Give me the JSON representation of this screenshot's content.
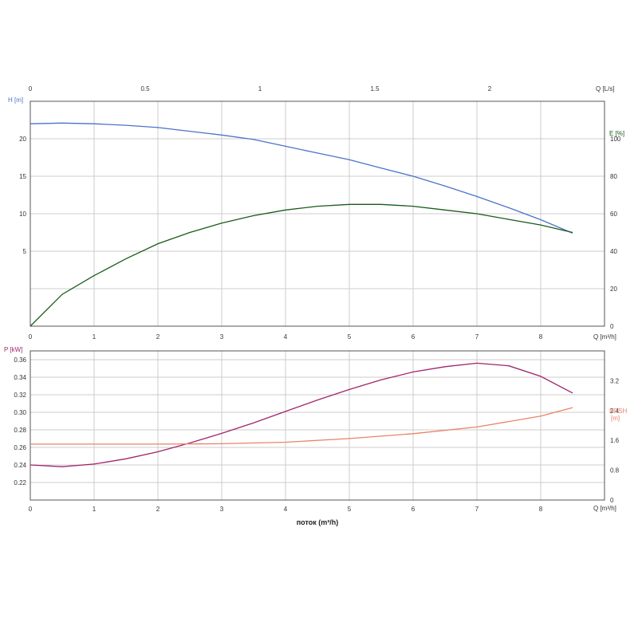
{
  "colors": {
    "head": "#4a73c9",
    "efficiency": "#1a5a1a",
    "power": "#a0246e",
    "npsh": "#e8846a",
    "grid": "#cccccc",
    "frame": "#555555"
  },
  "labels": {
    "top_axis_unit": "Q [L/s]",
    "head_unit": "H [m]",
    "eff_unit": "E [%]",
    "q_unit_top": "Q [m³/h]",
    "power_unit": "P [kW]",
    "npsh_unit_line1": "NPSH",
    "npsh_unit_line2": "[m]",
    "q_unit_bottom": "Q [m³/h]",
    "x_title": "поток (m³/h)"
  },
  "chart_data": [
    {
      "type": "line",
      "panel": "upper",
      "x_axis": {
        "label": "Q [m³/h]",
        "range": [
          0,
          9
        ],
        "ticks": [
          "0",
          "1",
          "2",
          "3",
          "4",
          "5",
          "6",
          "7",
          "8"
        ]
      },
      "x2_axis": {
        "label": "Q [L/s]",
        "range": [
          0,
          2.5
        ],
        "ticks": [
          "0",
          "0.5",
          "1",
          "1.5",
          "2"
        ]
      },
      "y_left": {
        "label": "H [m]",
        "range": [
          -5,
          25
        ],
        "ticks": [
          "5",
          "10",
          "15",
          "20"
        ]
      },
      "y_right": {
        "label": "E [%]",
        "range": [
          0,
          120
        ],
        "ticks": [
          "0",
          "20",
          "40",
          "60",
          "80",
          "100"
        ]
      },
      "grid": true,
      "series": [
        {
          "axis": "left",
          "color": "#4a73c9",
          "x": [
            0,
            0.5,
            1,
            1.5,
            2,
            2.5,
            3,
            3.5,
            4,
            4.5,
            5,
            5.5,
            6,
            6.5,
            7,
            7.5,
            8,
            8.5
          ],
          "y": [
            22.0,
            22.1,
            22.0,
            21.8,
            21.5,
            21.0,
            20.5,
            19.9,
            19.0,
            18.1,
            17.2,
            16.1,
            15.0,
            13.7,
            12.3,
            10.8,
            9.2,
            7.4
          ]
        },
        {
          "axis": "right",
          "color": "#1a5a1a",
          "x": [
            0,
            0.5,
            1,
            1.5,
            2,
            2.5,
            3,
            3.5,
            4,
            4.5,
            5,
            5.5,
            6,
            6.5,
            7,
            7.5,
            8,
            8.5
          ],
          "y": [
            0,
            17,
            27,
            36,
            44,
            50,
            55,
            59,
            62,
            64,
            65,
            65,
            64,
            62,
            60,
            57,
            54,
            50
          ]
        }
      ]
    },
    {
      "type": "line",
      "panel": "lower",
      "x_axis": {
        "label": "Q [m³/h]",
        "range": [
          0,
          9
        ],
        "ticks": [
          "0",
          "1",
          "2",
          "3",
          "4",
          "5",
          "6",
          "7",
          "8"
        ]
      },
      "x_title": "поток (m³/h)",
      "y_left": {
        "label": "P [kW]",
        "range": [
          0.2,
          0.37
        ],
        "ticks": [
          "0.22",
          "0.24",
          "0.26",
          "0.28",
          "0.30",
          "0.32",
          "0.34",
          "0.36"
        ]
      },
      "y_right": {
        "label": "NPSH [m]",
        "range": [
          0,
          4.0
        ],
        "ticks": [
          "0",
          "0.8",
          "1.6",
          "2.4",
          "3.2"
        ]
      },
      "grid": true,
      "series": [
        {
          "axis": "left",
          "color": "#a0246e",
          "x": [
            0,
            0.5,
            1,
            1.5,
            2,
            2.5,
            3,
            3.5,
            4,
            4.5,
            5,
            5.5,
            6,
            6.5,
            7,
            7.5,
            8,
            8.5
          ],
          "y": [
            0.24,
            0.238,
            0.241,
            0.247,
            0.255,
            0.265,
            0.276,
            0.288,
            0.301,
            0.314,
            0.326,
            0.337,
            0.346,
            0.352,
            0.356,
            0.353,
            0.341,
            0.322
          ]
        },
        {
          "axis": "right",
          "color": "#e8846a",
          "x": [
            0,
            1,
            2,
            3,
            4,
            5,
            6,
            7,
            8,
            8.5
          ],
          "y": [
            1.5,
            1.5,
            1.5,
            1.51,
            1.55,
            1.65,
            1.78,
            1.96,
            2.25,
            2.48
          ]
        }
      ]
    }
  ]
}
